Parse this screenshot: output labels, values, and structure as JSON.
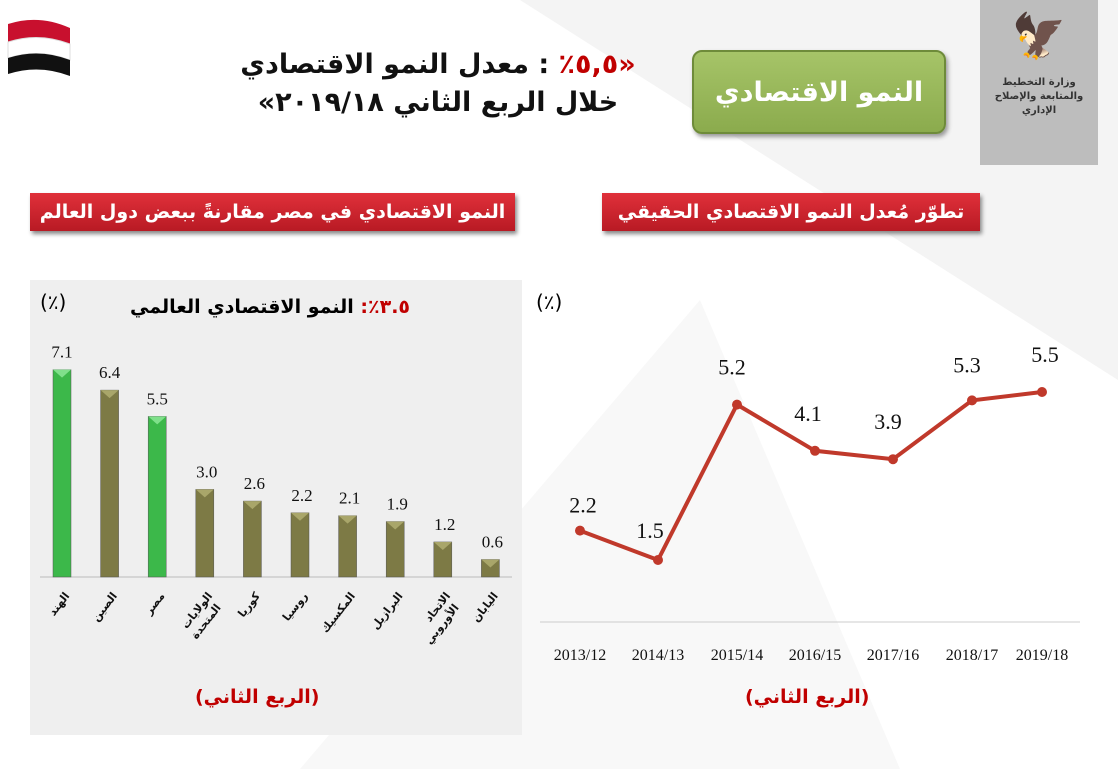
{
  "header": {
    "headline_highlight": "«٥,٥٪",
    "headline_rest": ": معدل النمو الاقتصادي",
    "headline_line2": "خلال الربع الثاني ٢٠١٩/١٨»",
    "section_badge": "النمو الاقتصادي",
    "ministry": "وزارة التخطيط والمتابعة والإصلاح الإداري"
  },
  "colors": {
    "green_bar": "#3cb84a",
    "olive_bar": "#7d7a45",
    "line": "#c0392b",
    "accent_red": "#c00000"
  },
  "chart_data": [
    {
      "type": "bar",
      "title": "النمو الاقتصادي في مصر مقارنةً ببعض دول العالم",
      "subtitle_highlight": "٣.٥٪:",
      "subtitle": "النمو الاقتصادي العالمي",
      "ylabel": "(٪)",
      "xlabel": "(الربع الثاني)",
      "categories": [
        "الهند",
        "الصين",
        "مصر",
        "الولايات المتحدة",
        "كوريا",
        "روسيا",
        "المكسيك",
        "البرازيل",
        "الاتحاد الأوروبي",
        "اليابان"
      ],
      "values": [
        7.1,
        6.4,
        5.5,
        3.0,
        2.6,
        2.2,
        2.1,
        1.9,
        1.2,
        0.6
      ],
      "value_labels": [
        "7.1",
        "6.4",
        "5.5",
        "3.0",
        "2.6",
        "2.2",
        "2.1",
        "1.9",
        "1.2",
        "0.6"
      ],
      "highlighted": [
        true,
        false,
        true,
        false,
        false,
        false,
        false,
        false,
        false,
        false
      ],
      "ylim": [
        0,
        7.5
      ]
    },
    {
      "type": "line",
      "title": "تطوّر مُعدل النمو الاقتصادي الحقيقي",
      "ylabel": "(٪)",
      "xlabel": "(الربع الثاني)",
      "x": [
        "2013/12",
        "2014/13",
        "2015/14",
        "2016/15",
        "2017/16",
        "2018/17",
        "2019/18"
      ],
      "values": [
        2.2,
        1.5,
        5.2,
        4.1,
        3.9,
        5.3,
        5.5
      ],
      "value_labels": [
        "2.2",
        "1.5",
        "5.2",
        "4.1",
        "3.9",
        "5.3",
        "5.5"
      ]
    }
  ]
}
